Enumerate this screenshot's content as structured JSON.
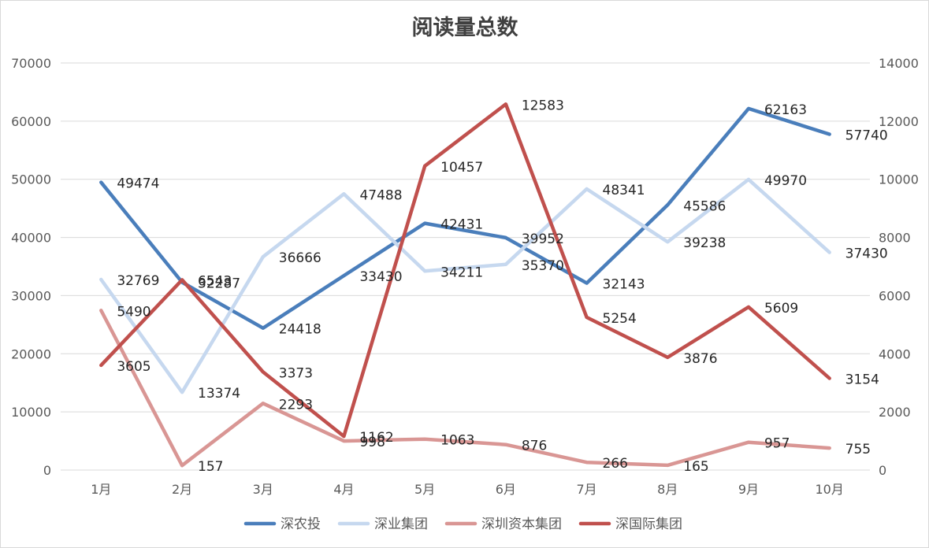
{
  "chart_data": {
    "type": "line",
    "title": "阅读量总数",
    "categories": [
      "1月",
      "2月",
      "3月",
      "4月",
      "5月",
      "6月",
      "7月",
      "8月",
      "9月",
      "10月"
    ],
    "y_left": {
      "min": 0,
      "max": 70000,
      "step": 10000,
      "ticks": [
        "0",
        "10000",
        "20000",
        "30000",
        "40000",
        "50000",
        "60000",
        "70000"
      ]
    },
    "y_right": {
      "min": 0,
      "max": 14000,
      "step": 2000,
      "ticks": [
        "0",
        "2000",
        "4000",
        "6000",
        "8000",
        "10000",
        "12000",
        "14000"
      ]
    },
    "grid": true,
    "legend_position": "bottom",
    "series": [
      {
        "name": "深农投",
        "axis": "left",
        "color": "#4a7ebb",
        "values": [
          49474,
          32287,
          24418,
          33430,
          42431,
          39952,
          32143,
          45586,
          62163,
          57740
        ]
      },
      {
        "name": "深业集团",
        "axis": "left",
        "color": "#c6d8ef",
        "values": [
          32769,
          13374,
          36666,
          47488,
          34211,
          35370,
          48341,
          39238,
          49970,
          37430
        ]
      },
      {
        "name": "深圳资本集团",
        "axis": "right",
        "color": "#d99694",
        "values": [
          5490,
          157,
          2293,
          998,
          1063,
          876,
          266,
          165,
          957,
          755
        ]
      },
      {
        "name": "深国际集团",
        "axis": "right",
        "color": "#c0504d",
        "values": [
          3605,
          6543,
          3373,
          1162,
          10457,
          12583,
          5254,
          3876,
          5609,
          3154
        ]
      }
    ]
  }
}
